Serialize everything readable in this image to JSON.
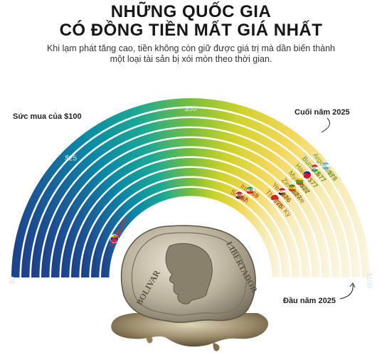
{
  "header": {
    "title_line1": "NHỮNG QUỐC GIA",
    "title_line2": "CÓ ĐỒNG TIỀN MẤT GIÁ NHẤT",
    "subtitle_line1": "Khi lạm phát tăng cao, tiền không còn giữ được giá trị mà dần biến thành",
    "subtitle_line2": "một loại tài sản bị xói mòn theo thời gian."
  },
  "chart_data": {
    "type": "radial-bar",
    "title": "NHỮNG QUỐC GIA CÓ ĐỒNG TIỀN MẤT GIÁ NHẤT",
    "label_start_axis": "Sức mua của $100",
    "label_end_marker": "Cuối năm 2025",
    "label_start_marker": "Đầu năm 2025",
    "range": [
      0,
      100
    ],
    "ticks": [
      {
        "value": 0,
        "label": "$0"
      },
      {
        "value": 25,
        "label": "$25"
      },
      {
        "value": 50,
        "label": "$50"
      },
      {
        "value": 75,
        "label": "$75"
      },
      {
        "value": 100,
        "label": "$100"
      }
    ],
    "start_value": 100,
    "series": [
      {
        "country": "Argentina",
        "value": 78,
        "label": "$78",
        "color": "#7a9a3c",
        "flag": "argentina"
      },
      {
        "country": "Burundi",
        "value": 77,
        "label": "$77",
        "color": "#6a8e36",
        "flag": "burundi"
      },
      {
        "country": "Haiti",
        "value": 77,
        "label": "$77",
        "color": "#7e8a30",
        "flag": "haiti"
      },
      {
        "country": "Myanmar",
        "value": 77,
        "label": "$77",
        "color": "#8a7d2a",
        "flag": "myanmar"
      },
      {
        "country": "Zimbabwe",
        "value": 77,
        "label": "$77",
        "color": "#957226",
        "flag": "zimbabwe"
      },
      {
        "country": "Yemen",
        "value": 76,
        "label": "$76",
        "color": "#a06a22",
        "flag": "yemen"
      },
      {
        "country": "Thổ Nhĩ Kỳ",
        "value": 76,
        "label": "$76",
        "color": "#a8601f",
        "flag": "turkey"
      },
      {
        "country": "Iran",
        "value": 69,
        "label": "$69",
        "color": "#ad5a26",
        "flag": "iran"
      },
      {
        "country": "Sudan",
        "value": 67,
        "label": "$67",
        "color": "#b0502c",
        "flag": "sudan"
      },
      {
        "country": "Venezuela",
        "value": 15,
        "label": "$15",
        "color": "#c2324a",
        "flag": "venezuela"
      }
    ]
  }
}
